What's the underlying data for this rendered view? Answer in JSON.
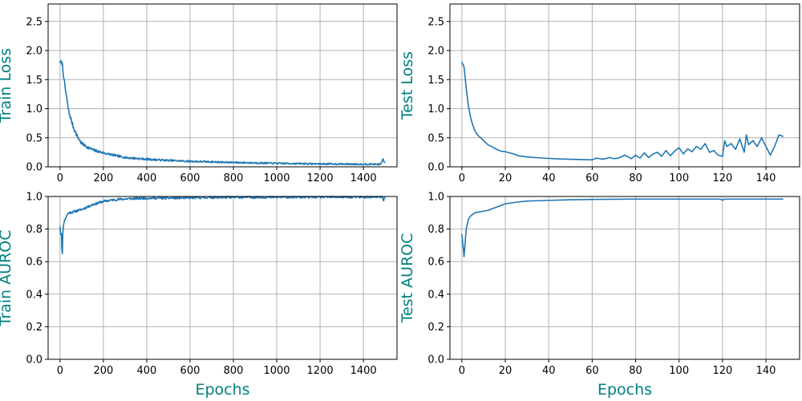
{
  "colors": {
    "line": "#1f77b4",
    "label": "#008080",
    "grid": "#b0b0b0"
  },
  "chart_data": [
    {
      "type": "line",
      "ylabel": "Train Loss",
      "xlabel": "",
      "xlim": [
        -55,
        1555
      ],
      "ylim": [
        0,
        2.8
      ],
      "xticks": [
        0,
        200,
        400,
        600,
        800,
        1000,
        1200,
        1400
      ],
      "yticks": [
        0.0,
        0.5,
        1.0,
        1.5,
        2.0,
        2.5
      ],
      "ytick_labels": [
        "0.0",
        "0.5",
        "1.0",
        "1.5",
        "2.0",
        "2.5"
      ],
      "noise": 0.025,
      "seed": 7,
      "series": [
        {
          "name": "train_loss",
          "x": [
            0,
            10,
            20,
            40,
            60,
            80,
            100,
            130,
            160,
            200,
            260,
            300,
            400,
            500,
            600,
            700,
            800,
            1000,
            1200,
            1400,
            1480,
            1490,
            1500
          ],
          "values": [
            1.8,
            1.78,
            1.45,
            0.95,
            0.7,
            0.52,
            0.4,
            0.33,
            0.28,
            0.24,
            0.19,
            0.16,
            0.13,
            0.11,
            0.095,
            0.085,
            0.075,
            0.06,
            0.05,
            0.045,
            0.045,
            0.13,
            0.06
          ]
        }
      ]
    },
    {
      "type": "line",
      "ylabel": "Test Loss",
      "xlabel": "",
      "xlim": [
        -5.5,
        155.5
      ],
      "ylim": [
        0,
        2.8
      ],
      "xticks": [
        0,
        20,
        40,
        60,
        80,
        100,
        120,
        140
      ],
      "yticks": [
        0.0,
        0.5,
        1.0,
        1.5,
        2.0,
        2.5
      ],
      "ytick_labels": [
        "0.0",
        "0.5",
        "1.0",
        "1.5",
        "2.0",
        "2.5"
      ],
      "noise": 0,
      "seed": 3,
      "series": [
        {
          "name": "test_loss",
          "x": [
            0,
            1,
            2,
            3,
            4,
            5,
            6,
            7,
            8,
            9,
            10,
            12,
            14,
            16,
            18,
            20,
            22,
            24,
            26,
            30,
            35,
            40,
            45,
            50,
            55,
            60,
            62,
            65,
            68,
            70,
            72,
            75,
            78,
            80,
            82,
            84,
            86,
            88,
            90,
            92,
            94,
            96,
            98,
            100,
            102,
            104,
            106,
            108,
            110,
            112,
            114,
            116,
            118,
            120,
            121,
            122,
            124,
            126,
            128,
            130,
            131,
            132,
            134,
            136,
            138,
            140,
            142,
            144,
            146,
            148
          ],
          "values": [
            1.8,
            1.72,
            1.35,
            1.05,
            0.85,
            0.72,
            0.62,
            0.56,
            0.52,
            0.49,
            0.45,
            0.38,
            0.34,
            0.3,
            0.27,
            0.26,
            0.24,
            0.22,
            0.19,
            0.17,
            0.155,
            0.145,
            0.135,
            0.13,
            0.125,
            0.12,
            0.15,
            0.13,
            0.16,
            0.14,
            0.15,
            0.2,
            0.14,
            0.2,
            0.15,
            0.24,
            0.16,
            0.22,
            0.25,
            0.18,
            0.28,
            0.19,
            0.27,
            0.33,
            0.22,
            0.31,
            0.26,
            0.35,
            0.3,
            0.4,
            0.25,
            0.28,
            0.2,
            0.18,
            0.45,
            0.35,
            0.4,
            0.3,
            0.48,
            0.25,
            0.55,
            0.38,
            0.45,
            0.35,
            0.5,
            0.35,
            0.2,
            0.35,
            0.55,
            0.52
          ]
        }
      ]
    },
    {
      "type": "line",
      "ylabel": "Train AUROC",
      "xlabel": "Epochs",
      "xlim": [
        -55,
        1555
      ],
      "ylim": [
        0,
        1.0
      ],
      "xticks": [
        0,
        200,
        400,
        600,
        800,
        1000,
        1200,
        1400
      ],
      "yticks": [
        0.0,
        0.2,
        0.4,
        0.6,
        0.8,
        1.0
      ],
      "ytick_labels": [
        "0.0",
        "0.2",
        "0.4",
        "0.6",
        "0.8",
        "1.0"
      ],
      "noise": 0.005,
      "seed": 11,
      "series": [
        {
          "name": "train_auroc",
          "x": [
            0,
            3,
            6,
            10,
            13,
            16,
            20,
            30,
            40,
            60,
            100,
            150,
            200,
            250,
            300,
            400,
            500,
            600,
            700,
            800,
            1000,
            1200,
            1400,
            1490,
            1492,
            1495,
            1500
          ],
          "values": [
            0.82,
            0.75,
            0.8,
            0.6,
            0.78,
            0.83,
            0.85,
            0.88,
            0.9,
            0.905,
            0.92,
            0.95,
            0.97,
            0.98,
            0.985,
            0.99,
            0.99,
            0.992,
            0.994,
            0.995,
            0.996,
            0.997,
            0.997,
            0.997,
            0.96,
            0.99,
            0.997
          ]
        }
      ]
    },
    {
      "type": "line",
      "ylabel": "Test AUROC",
      "xlabel": "Epochs",
      "xlim": [
        -5.5,
        155.5
      ],
      "ylim": [
        0,
        1.0
      ],
      "xticks": [
        0,
        20,
        40,
        60,
        80,
        100,
        120,
        140
      ],
      "yticks": [
        0.0,
        0.2,
        0.4,
        0.6,
        0.8,
        1.0
      ],
      "ytick_labels": [
        "0.0",
        "0.2",
        "0.4",
        "0.6",
        "0.8",
        "1.0"
      ],
      "noise": 0,
      "seed": 5,
      "series": [
        {
          "name": "test_auroc",
          "x": [
            0,
            1,
            2,
            3,
            4,
            5,
            6,
            8,
            10,
            12,
            14,
            16,
            18,
            20,
            25,
            30,
            40,
            50,
            60,
            70,
            80,
            90,
            100,
            110,
            119,
            120,
            121,
            130,
            140,
            148
          ],
          "values": [
            0.77,
            0.63,
            0.8,
            0.86,
            0.88,
            0.89,
            0.9,
            0.905,
            0.91,
            0.915,
            0.925,
            0.935,
            0.945,
            0.955,
            0.965,
            0.972,
            0.976,
            0.98,
            0.982,
            0.983,
            0.984,
            0.984,
            0.984,
            0.984,
            0.984,
            0.977,
            0.984,
            0.984,
            0.984,
            0.984
          ]
        }
      ]
    }
  ]
}
